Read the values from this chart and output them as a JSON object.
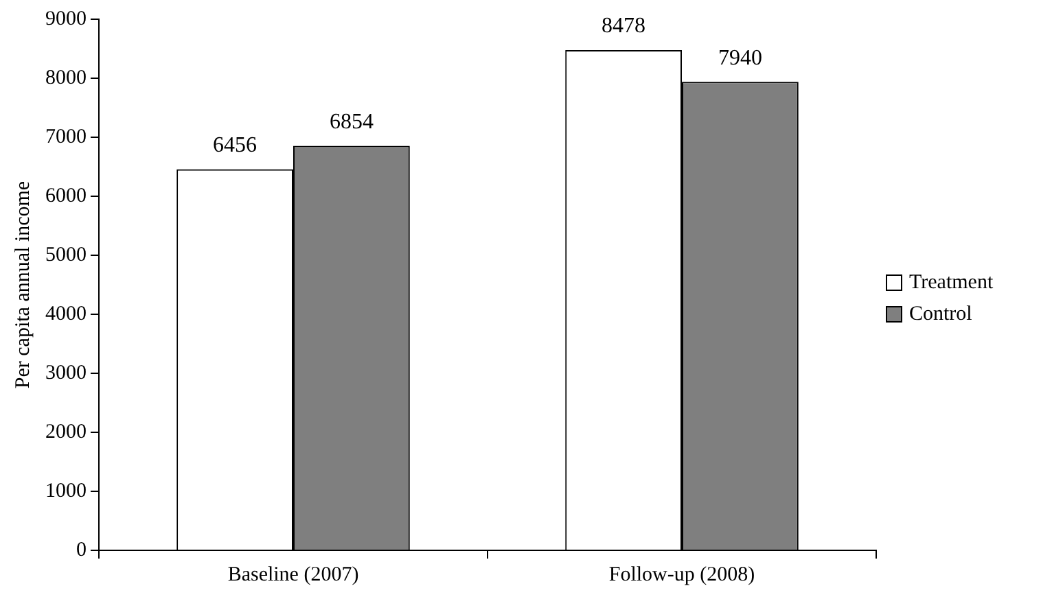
{
  "chart_data": {
    "type": "bar",
    "ylabel": "Per capita annual income",
    "categories": [
      "Baseline (2007)",
      "Follow-up (2008)"
    ],
    "series": [
      {
        "name": "Treatment",
        "color": "#ffffff",
        "values": [
          6456,
          8478
        ]
      },
      {
        "name": "Control",
        "color": "#7f7f7f",
        "values": [
          6854,
          7940
        ]
      }
    ],
    "ylim": [
      0,
      9000
    ],
    "yticks": [
      0,
      1000,
      2000,
      3000,
      4000,
      5000,
      6000,
      7000,
      8000,
      9000
    ],
    "grid": false,
    "legend": "right",
    "data_labels": true
  }
}
